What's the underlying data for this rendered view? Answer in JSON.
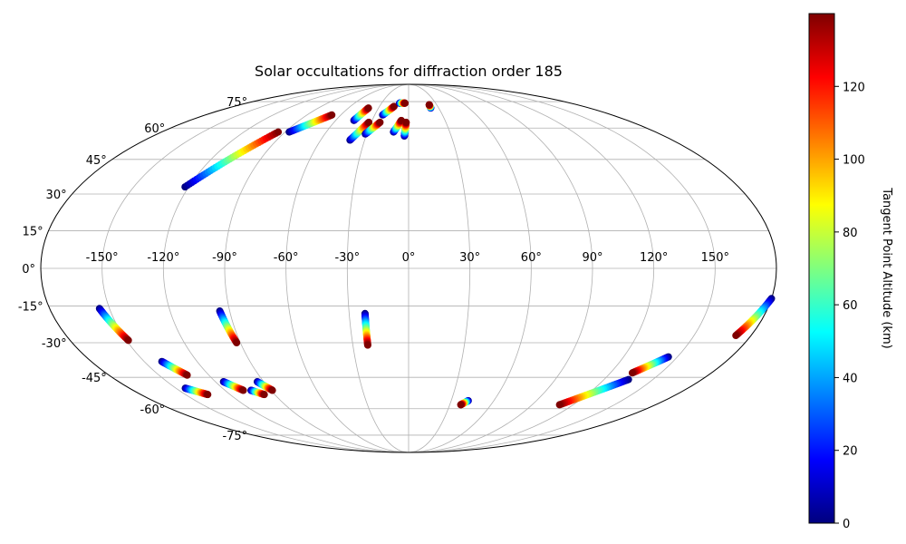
{
  "chart_data": {
    "type": "scatter",
    "projection": "mollweide",
    "title": "Solar occultations for diffraction order 185",
    "grid": true,
    "lon_ticks": [
      "-150°",
      "-120°",
      "-90°",
      "-60°",
      "-30°",
      "0°",
      "30°",
      "60°",
      "90°",
      "120°",
      "150°"
    ],
    "lon_tick_values": [
      -150,
      -120,
      -90,
      -60,
      -30,
      0,
      30,
      60,
      90,
      120,
      150
    ],
    "lat_ticks": [
      "-75°",
      "-60°",
      "-45°",
      "-30°",
      "-15°",
      "0°",
      "15°",
      "30°",
      "45°",
      "60°",
      "75°"
    ],
    "lat_tick_values": [
      -75,
      -60,
      -45,
      -30,
      -15,
      0,
      15,
      30,
      45,
      60,
      75
    ],
    "colorbar": {
      "label": "Tangent Point Altitude (km)",
      "colormap": "jet",
      "range": [
        0,
        140
      ],
      "ticks": [
        "0",
        "20",
        "40",
        "60",
        "80",
        "100",
        "120"
      ],
      "tick_values": [
        0,
        20,
        40,
        60,
        80,
        100,
        120
      ]
    },
    "series": [
      {
        "start": [
          -122,
          33
        ],
        "end": [
          -95,
          58
        ]
      },
      {
        "start": [
          -87,
          58
        ],
        "end": [
          -68,
          67
        ]
      },
      {
        "start": [
          -45,
          64
        ],
        "end": [
          -40,
          71
        ]
      },
      {
        "start": [
          -40,
          54
        ],
        "end": [
          -32,
          63
        ]
      },
      {
        "start": [
          -31,
          57
        ],
        "end": [
          -23,
          63
        ]
      },
      {
        "start": [
          -23,
          67
        ],
        "end": [
          -15,
          72
        ]
      },
      {
        "start": [
          -10,
          74
        ],
        "end": [
          -4,
          74
        ]
      },
      {
        "start": [
          -11,
          58
        ],
        "end": [
          -6,
          64
        ]
      },
      {
        "start": [
          -3,
          56
        ],
        "end": [
          -2,
          63
        ]
      },
      {
        "start": [
          22,
          71
        ],
        "end": [
          22,
          73
        ]
      },
      {
        "start": [
          -155,
          -16
        ],
        "end": [
          -149,
          -29
        ]
      },
      {
        "start": [
          -140,
          -38
        ],
        "end": [
          -133,
          -44
        ]
      },
      {
        "start": [
          -144,
          -50
        ],
        "end": [
          -135,
          -53
        ]
      },
      {
        "start": [
          -115,
          -47
        ],
        "end": [
          -108,
          -51
        ]
      },
      {
        "start": [
          -103,
          -51
        ],
        "end": [
          -97,
          -53
        ]
      },
      {
        "start": [
          -94,
          -47
        ],
        "end": [
          -89,
          -51
        ]
      },
      {
        "start": [
          -95,
          -17
        ],
        "end": [
          -92,
          -30
        ]
      },
      {
        "start": [
          -22,
          -18
        ],
        "end": [
          -22,
          -31
        ]
      },
      {
        "start": [
          42,
          -56
        ],
        "end": [
          38,
          -58
        ]
      },
      {
        "start": [
          135,
          -46
        ],
        "end": [
          110,
          -58
        ]
      },
      {
        "start": [
          145,
          -36
        ],
        "end": [
          133,
          -43
        ]
      },
      {
        "start": [
          180,
          -12
        ],
        "end": [
          172,
          -27
        ]
      }
    ]
  }
}
